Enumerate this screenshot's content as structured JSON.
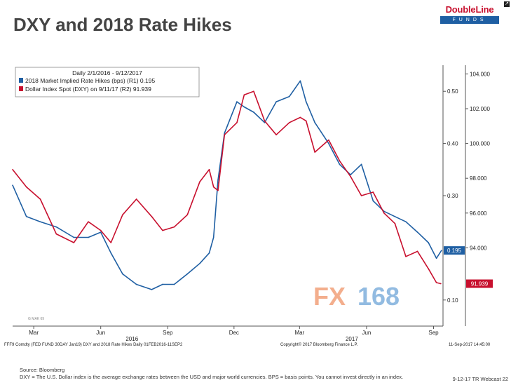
{
  "header": {
    "title": "DXY and 2018 Rate Hikes",
    "logo_name": "DoubleLine",
    "logo_sub": "FUNDS"
  },
  "chart_data": {
    "type": "line",
    "legend": {
      "heading": "Daily 2/1/2016 - 9/12/2017",
      "placement": "top-left",
      "entries": [
        "2018 Market Implied Rate Hikes (bps) (R1) 0.195",
        "Dollar Index Spot (DXY) on 9/11/17 (R2)  91.939"
      ]
    },
    "x_tick_labels": [
      "Mar",
      "Jun",
      "Sep",
      "Dec",
      "Mar",
      "Jun",
      "Sep"
    ],
    "x_year_labels": [
      "2016",
      "2017"
    ],
    "r1_ticks": [
      "0.50",
      "0.40",
      "0.30",
      "0.10"
    ],
    "r1_range": [
      0.05,
      0.55
    ],
    "r2_ticks": [
      "104.000",
      "102.000",
      "100.000",
      "98.000",
      "96.000",
      "94.000"
    ],
    "r2_range": [
      89.5,
      104.5
    ],
    "last_value_tags": [
      "0.195",
      "91.939"
    ],
    "watermark": "FX168",
    "colors": {
      "rate_hikes": "#1f5fa3",
      "dxy": "#c8102e",
      "watermark_fx": "#f2a07a",
      "watermark_num": "#7fb0dc"
    },
    "series": [
      {
        "name": "2018 Market Implied Rate Hikes (bps) (R1)",
        "axis": "R1",
        "color": "#1f5fa3",
        "x": [
          "2016-02-01",
          "2016-02-20",
          "2016-03-10",
          "2016-04-01",
          "2016-04-25",
          "2016-05-15",
          "2016-06-01",
          "2016-06-15",
          "2016-07-01",
          "2016-07-20",
          "2016-08-10",
          "2016-08-25",
          "2016-09-10",
          "2016-09-28",
          "2016-10-15",
          "2016-10-28",
          "2016-11-03",
          "2016-11-09",
          "2016-11-18",
          "2016-12-05",
          "2016-12-15",
          "2016-12-28",
          "2017-01-12",
          "2017-01-28",
          "2017-02-15",
          "2017-03-02",
          "2017-03-10",
          "2017-03-22",
          "2017-04-10",
          "2017-04-25",
          "2017-05-10",
          "2017-05-25",
          "2017-06-10",
          "2017-06-25",
          "2017-07-10",
          "2017-07-25",
          "2017-08-10",
          "2017-08-25",
          "2017-09-05",
          "2017-09-12"
        ],
        "values": [
          0.32,
          0.26,
          0.25,
          0.24,
          0.22,
          0.22,
          0.23,
          0.19,
          0.15,
          0.13,
          0.12,
          0.13,
          0.13,
          0.15,
          0.17,
          0.19,
          0.22,
          0.33,
          0.42,
          0.48,
          0.47,
          0.46,
          0.44,
          0.48,
          0.49,
          0.52,
          0.48,
          0.44,
          0.4,
          0.36,
          0.34,
          0.36,
          0.29,
          0.27,
          0.26,
          0.25,
          0.23,
          0.21,
          0.18,
          0.195
        ]
      },
      {
        "name": "Dollar Index Spot (DXY) on 9/11/17 (R2)",
        "axis": "R2",
        "color": "#c8102e",
        "x": [
          "2016-02-01",
          "2016-02-20",
          "2016-03-10",
          "2016-04-01",
          "2016-04-25",
          "2016-05-15",
          "2016-06-01",
          "2016-06-15",
          "2016-07-01",
          "2016-07-20",
          "2016-08-10",
          "2016-08-25",
          "2016-09-10",
          "2016-09-28",
          "2016-10-15",
          "2016-10-28",
          "2016-11-03",
          "2016-11-09",
          "2016-11-18",
          "2016-12-05",
          "2016-12-15",
          "2016-12-28",
          "2017-01-12",
          "2017-01-28",
          "2017-02-15",
          "2017-03-02",
          "2017-03-10",
          "2017-03-22",
          "2017-04-10",
          "2017-04-25",
          "2017-05-10",
          "2017-05-25",
          "2017-06-10",
          "2017-06-25",
          "2017-07-10",
          "2017-07-25",
          "2017-08-10",
          "2017-08-25",
          "2017-09-05",
          "2017-09-11"
        ],
        "values": [
          98.5,
          97.5,
          96.8,
          94.8,
          94.3,
          95.5,
          95.0,
          94.3,
          95.9,
          96.8,
          95.8,
          95.0,
          95.2,
          95.9,
          97.8,
          98.5,
          97.5,
          97.3,
          100.5,
          101.2,
          102.8,
          103.0,
          101.3,
          100.5,
          101.2,
          101.5,
          101.3,
          99.5,
          100.2,
          99.0,
          98.1,
          97.0,
          97.2,
          96.0,
          95.4,
          93.5,
          93.8,
          92.8,
          92.0,
          91.939
        ]
      }
    ]
  },
  "chart_footer": {
    "left": "FFF9 Comdty (FED FUND 30DAY    Jan19) DXY and 2018 Rate Hikes  Daily 01FEB2016-11SEP2",
    "center": "Copyright© 2017 Bloomberg Finance L.P.",
    "right": "11-Sep-2017 14:45:00",
    "gmak": "G MAK 69"
  },
  "source": {
    "line1": "Source: Bloomberg",
    "line2": "DXY = The U.S. Dollar index is the average exchange rates between the USD and major world currencies.  BPS = basis points. You cannot invest directly in an index."
  },
  "webcast": "9-12-17 TR Webcast 22"
}
